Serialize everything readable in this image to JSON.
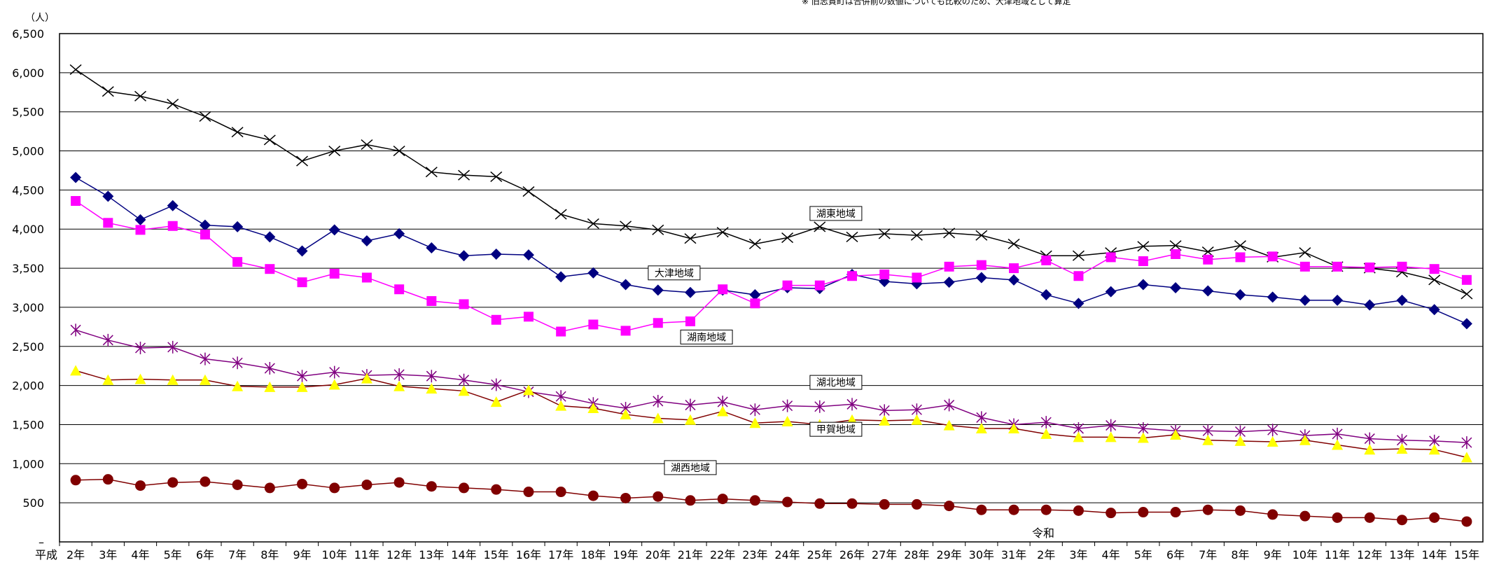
{
  "chart_data": {
    "type": "line",
    "note": "※ 旧志賀町は合併前の数値についても比較のため、大津地域として算定",
    "yunit": "（人）",
    "era_labels": [
      "平成",
      "令和"
    ],
    "ylim": [
      0,
      6500
    ],
    "yticks": [
      {
        "value": 0,
        "label": "–"
      },
      {
        "value": 500,
        "label": "500"
      },
      {
        "value": 1000,
        "label": "1,000"
      },
      {
        "value": 1500,
        "label": "1,500"
      },
      {
        "value": 2000,
        "label": "2,000"
      },
      {
        "value": 2500,
        "label": "2,500"
      },
      {
        "value": 3000,
        "label": "3,000"
      },
      {
        "value": 3500,
        "label": "3,500"
      },
      {
        "value": 4000,
        "label": "4,000"
      },
      {
        "value": 4500,
        "label": "4,500"
      },
      {
        "value": 5000,
        "label": "5,000"
      },
      {
        "value": 5500,
        "label": "5,500"
      },
      {
        "value": 6000,
        "label": "6,000"
      },
      {
        "value": 6500,
        "label": "6,500"
      }
    ],
    "grid": true,
    "categories": [
      "2年",
      "3年",
      "4年",
      "5年",
      "6年",
      "7年",
      "8年",
      "9年",
      "10年",
      "11年",
      "12年",
      "13年",
      "14年",
      "15年",
      "16年",
      "17年",
      "18年",
      "19年",
      "20年",
      "21年",
      "22年",
      "23年",
      "24年",
      "25年",
      "26年",
      "27年",
      "28年",
      "29年",
      "30年",
      "31年",
      "2年",
      "3年",
      "4年",
      "5年",
      "6年",
      "7年",
      "8年",
      "9年",
      "10年",
      "11年",
      "12年",
      "13年",
      "14年",
      "15年"
    ],
    "series": [
      {
        "name": "湖東地域",
        "color": "#000000",
        "marker": "x",
        "values": [
          6040,
          5760,
          5700,
          5600,
          5440,
          5240,
          5140,
          4870,
          5000,
          5080,
          5000,
          4730,
          4690,
          4670,
          4480,
          4190,
          4070,
          4040,
          3990,
          3880,
          3960,
          3810,
          3890,
          4030,
          3900,
          3940,
          3920,
          3950,
          3920,
          3810,
          3660,
          3660,
          3700,
          3780,
          3790,
          3710,
          3790,
          3640,
          3700,
          3520,
          3500,
          3450,
          3350,
          3170
        ]
      },
      {
        "name": "大津地域",
        "color": "#000080",
        "marker": "diamond",
        "values": [
          4660,
          4420,
          4120,
          4300,
          4050,
          4030,
          3900,
          3720,
          3990,
          3850,
          3940,
          3760,
          3660,
          3680,
          3670,
          3390,
          3440,
          3290,
          3220,
          3190,
          3220,
          3160,
          3250,
          3240,
          3420,
          3330,
          3300,
          3320,
          3380,
          3350,
          3160,
          3050,
          3200,
          3290,
          3250,
          3210,
          3160,
          3130,
          3090,
          3090,
          3030,
          3090,
          2970,
          2790
        ]
      },
      {
        "name": "湖南地域",
        "color": "#ff00ff",
        "marker": "square",
        "values": [
          4360,
          4080,
          3990,
          4040,
          3930,
          3580,
          3490,
          3320,
          3430,
          3380,
          3230,
          3080,
          3040,
          2840,
          2880,
          2690,
          2780,
          2700,
          2800,
          2820,
          3230,
          3050,
          3280,
          3280,
          3400,
          3420,
          3380,
          3520,
          3540,
          3500,
          3600,
          3400,
          3640,
          3590,
          3680,
          3610,
          3640,
          3650,
          3520,
          3520,
          3510,
          3520,
          3490,
          3350
        ]
      },
      {
        "name": "湖北地域",
        "color": "#800080",
        "marker": "star",
        "values": [
          2710,
          2580,
          2480,
          2490,
          2340,
          2290,
          2220,
          2120,
          2170,
          2130,
          2140,
          2120,
          2070,
          2010,
          1920,
          1860,
          1770,
          1710,
          1800,
          1750,
          1790,
          1690,
          1740,
          1730,
          1760,
          1680,
          1690,
          1750,
          1590,
          1500,
          1530,
          1450,
          1490,
          1450,
          1420,
          1420,
          1410,
          1430,
          1360,
          1380,
          1320,
          1300,
          1290,
          1270
        ]
      },
      {
        "name": "甲賀地域",
        "color": "#ffff00",
        "line_color": "#800000",
        "marker": "triangle",
        "values": [
          2190,
          2070,
          2080,
          2070,
          2070,
          1990,
          1980,
          1980,
          2010,
          2090,
          1990,
          1960,
          1930,
          1790,
          1940,
          1740,
          1710,
          1630,
          1580,
          1560,
          1670,
          1520,
          1540,
          1500,
          1560,
          1550,
          1560,
          1490,
          1450,
          1450,
          1380,
          1340,
          1340,
          1330,
          1370,
          1300,
          1290,
          1280,
          1300,
          1240,
          1180,
          1190,
          1180,
          1080
        ]
      },
      {
        "name": "湖西地域",
        "color": "#800000",
        "marker": "circle",
        "values": [
          790,
          800,
          720,
          760,
          770,
          730,
          690,
          740,
          690,
          730,
          760,
          710,
          690,
          670,
          640,
          640,
          590,
          560,
          580,
          530,
          550,
          530,
          510,
          490,
          490,
          480,
          480,
          460,
          410,
          410,
          410,
          400,
          370,
          380,
          380,
          410,
          400,
          350,
          330,
          310,
          310,
          280,
          310,
          260
        ]
      }
    ],
    "annotations": [
      {
        "text": "湖東地域",
        "x_index": 23.5,
        "y": 4200
      },
      {
        "text": "大津地域",
        "x_index": 18.5,
        "y": 3440
      },
      {
        "text": "湖南地域",
        "x_index": 19.5,
        "y": 2620
      },
      {
        "text": "湖北地域",
        "x_index": 23.5,
        "y": 2040
      },
      {
        "text": "甲賀地域",
        "x_index": 23.5,
        "y": 1440
      },
      {
        "text": "湖西地域",
        "x_index": 19.0,
        "y": 950
      }
    ]
  }
}
